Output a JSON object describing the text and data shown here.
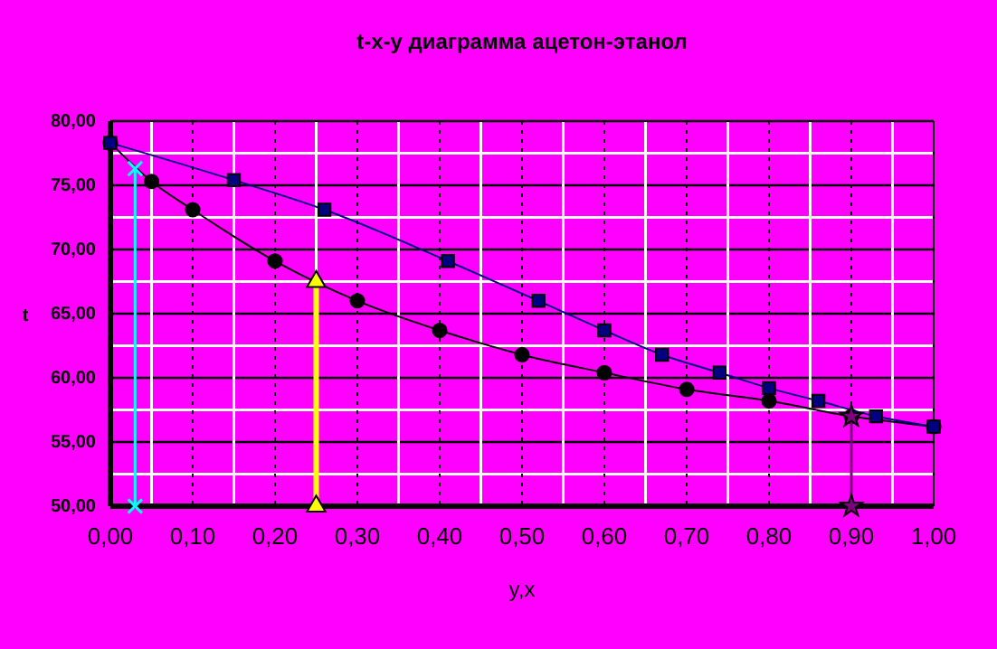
{
  "chart_data": {
    "type": "line",
    "title": "t-x-y диаграмма ацетон-этанол",
    "xlabel": "y,x",
    "ylabel": "t",
    "xlim": [
      0,
      1
    ],
    "ylim": [
      50,
      80
    ],
    "xticks": [
      {
        "value": 0,
        "label": "0,00"
      },
      {
        "value": 0.1,
        "label": "0,10"
      },
      {
        "value": 0.2,
        "label": "0,20"
      },
      {
        "value": 0.3,
        "label": "0,30"
      },
      {
        "value": 0.4,
        "label": "0,40"
      },
      {
        "value": 0.5,
        "label": "0,50"
      },
      {
        "value": 0.6,
        "label": "0,60"
      },
      {
        "value": 0.7,
        "label": "0,70"
      },
      {
        "value": 0.8,
        "label": "0,80"
      },
      {
        "value": 0.9,
        "label": "0,90"
      },
      {
        "value": 1,
        "label": "1,00"
      }
    ],
    "yticks": [
      {
        "value": 50,
        "label": "50,00"
      },
      {
        "value": 55,
        "label": "55,00"
      },
      {
        "value": 60,
        "label": "60,00"
      },
      {
        "value": 65,
        "label": "65,00"
      },
      {
        "value": 70,
        "label": "70,00"
      },
      {
        "value": 75,
        "label": "75,00"
      },
      {
        "value": 80,
        "label": "80,00"
      }
    ],
    "grid": true,
    "line_style": "solid",
    "series": [
      {
        "color": "#000000",
        "marker": "circle",
        "x": [
          0,
          0.05,
          0.1,
          0.2,
          0.3,
          0.4,
          0.5,
          0.6,
          0.7,
          0.8,
          0.9,
          1
        ],
        "values": [
          78.3,
          75.3,
          73.1,
          69.1,
          66.0,
          63.7,
          61.8,
          60.4,
          59.1,
          58.2,
          57.0,
          56.2
        ]
      },
      {
        "color": "#000080",
        "marker": "square",
        "x": [
          0,
          0.15,
          0.26,
          0.41,
          0.52,
          0.6,
          0.67,
          0.74,
          0.8,
          0.86,
          0.93,
          1
        ],
        "values": [
          78.3,
          75.4,
          73.1,
          69.1,
          66.0,
          63.7,
          61.8,
          60.4,
          59.2,
          58.2,
          57.0,
          56.2
        ]
      },
      {
        "color": "#00ffff",
        "marker": "cross",
        "x": [
          0.03,
          0.03
        ],
        "values": [
          76.3,
          50
        ]
      },
      {
        "color": "#ffff00",
        "marker": "triangle",
        "x": [
          0.25,
          0.25
        ],
        "values": [
          67.5,
          50
        ]
      },
      {
        "color": "#800080",
        "marker": "star",
        "x": [
          0.9,
          0.9
        ],
        "values": [
          57.0,
          50
        ]
      }
    ]
  }
}
